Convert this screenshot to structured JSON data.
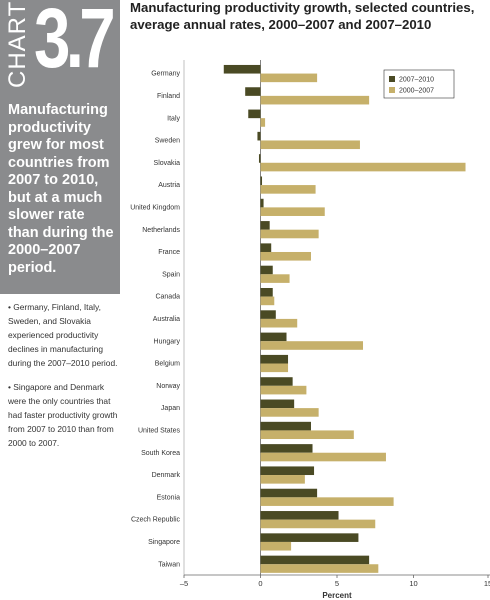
{
  "sidebar": {
    "chart_word": "CHART",
    "chart_number": "3.7",
    "summary": "Manufacturing productivity grew for most countries from 2007 to 2010, but at a much slower rate than during the 2000–2007 period.",
    "bullets": [
      "• Germany, Finland, Italy, Sweden, and Slovakia experienced productivity declines in manufacturing during the 2007–2010 period.",
      "• Singapore and Denmark were the only countries that had faster productivity growth from 2007 to 2010 than from 2000 to 2007."
    ]
  },
  "colors": {
    "series_2007_2010": "#4a4a24",
    "series_2000_2007": "#c6b06a",
    "banner_gray": "#8a8b8d"
  },
  "chart_data": {
    "type": "bar",
    "orientation": "horizontal",
    "title": "Manufacturing productivity growth, selected countries, average annual rates, 2000–2007 and 2007–2010",
    "xlabel": "Percent",
    "ylabel": "",
    "xlim": [
      -5,
      15
    ],
    "xticks": [
      "–5",
      "0",
      "5",
      "10",
      "15"
    ],
    "xtick_values": [
      -5,
      0,
      5,
      10,
      15
    ],
    "legend_position": "top-right",
    "categories": [
      "Germany",
      "Finland",
      "Italy",
      "Sweden",
      "Slovakia",
      "Austria",
      "United Kingdom",
      "Netherlands",
      "France",
      "Spain",
      "Canada",
      "Australia",
      "Hungary",
      "Belgium",
      "Norway",
      "Japan",
      "United States",
      "South Korea",
      "Denmark",
      "Estonia",
      "Czech Republic",
      "Singapore",
      "Taiwan"
    ],
    "series": [
      {
        "name": "2007–2010",
        "values": [
          -2.4,
          -1.0,
          -0.8,
          -0.2,
          -0.1,
          0.1,
          0.2,
          0.6,
          0.7,
          0.8,
          0.8,
          1.0,
          1.7,
          1.8,
          2.1,
          2.2,
          3.3,
          3.4,
          3.5,
          3.7,
          5.1,
          6.4,
          7.1
        ]
      },
      {
        "name": "2000–2007",
        "values": [
          3.7,
          7.1,
          0.3,
          6.5,
          13.4,
          3.6,
          4.2,
          3.8,
          3.3,
          1.9,
          0.9,
          2.4,
          6.7,
          1.8,
          3.0,
          3.8,
          6.1,
          8.2,
          2.9,
          8.7,
          7.5,
          2.0,
          7.7
        ]
      }
    ]
  }
}
